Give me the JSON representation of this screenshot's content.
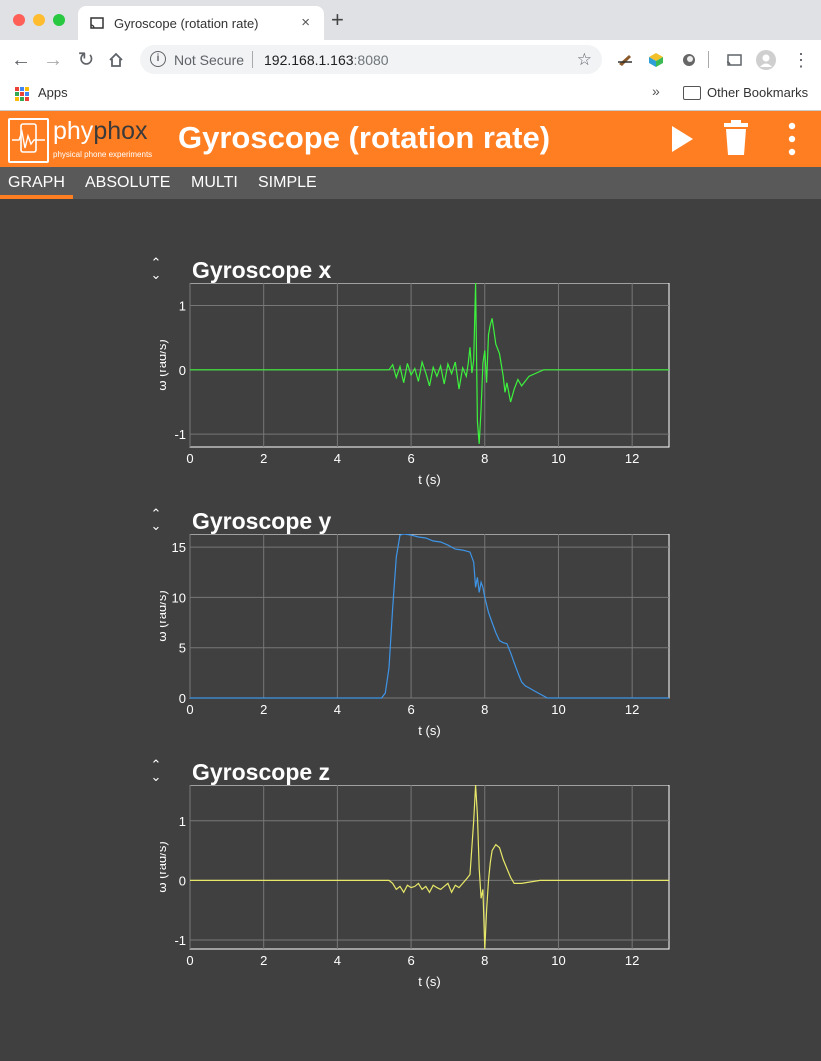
{
  "browser": {
    "tab_title": "Gyroscope (rotation rate)",
    "tab_close": "×",
    "new_tab": "+",
    "security": "Not Secure",
    "url_host": "192.168.1.163",
    "url_port": ":8080",
    "apps_label": "Apps",
    "bookmarks_chevron": "»",
    "other_bookmarks": "Other Bookmarks"
  },
  "app": {
    "brand": "#ff7e22",
    "logo_phy": "phy",
    "logo_phox": "phox",
    "logo_subtitle": "physical phone experiments",
    "title": "Gyroscope (rotation rate)",
    "icons": [
      "play-icon",
      "trash-icon",
      "more-vert-icon"
    ]
  },
  "views": [
    {
      "label": "GRAPH",
      "active": true
    },
    {
      "label": "ABSOLUTE",
      "active": false
    },
    {
      "label": "MULTI",
      "active": false
    },
    {
      "label": "SIMPLE",
      "active": false
    }
  ],
  "graphs": [
    {
      "title": "Gyroscope x",
      "ylabel": "ω (rad/s)",
      "xlabel": "t (s)",
      "color": "#3cf23c"
    },
    {
      "title": "Gyroscope y",
      "ylabel": "ω (rad/s)",
      "xlabel": "t (s)",
      "color": "#3e95e8"
    },
    {
      "title": "Gyroscope z",
      "ylabel": "ω (rad/s)",
      "xlabel": "t (s)",
      "color": "#e8e868"
    }
  ],
  "chart_data": [
    {
      "type": "line",
      "title": "Gyroscope x",
      "xlabel": "t (s)",
      "ylabel": "ω (rad/s)",
      "xlim": [
        0,
        13
      ],
      "ylim": [
        -1.2,
        1.35
      ],
      "xticks": [
        0,
        2,
        4,
        6,
        8,
        10,
        12
      ],
      "yticks": [
        -1,
        0,
        1
      ],
      "grid": true,
      "series": [
        {
          "color": "#3cf23c",
          "x": [
            0,
            5.4,
            5.5,
            5.6,
            5.7,
            5.8,
            5.9,
            6.0,
            6.1,
            6.2,
            6.3,
            6.4,
            6.5,
            6.6,
            6.7,
            6.8,
            6.9,
            7.0,
            7.1,
            7.2,
            7.3,
            7.4,
            7.5,
            7.55,
            7.6,
            7.65,
            7.7,
            7.75,
            7.8,
            7.85,
            7.9,
            7.95,
            8.0,
            8.05,
            8.1,
            8.15,
            8.2,
            8.25,
            8.3,
            8.4,
            8.5,
            8.55,
            8.6,
            8.7,
            8.8,
            8.9,
            9.0,
            9.2,
            9.4,
            9.6,
            10,
            13
          ],
          "y": [
            0,
            0,
            0.08,
            -0.12,
            0.05,
            -0.2,
            0.1,
            -0.08,
            0.02,
            -0.18,
            0.12,
            -0.05,
            -0.25,
            0.04,
            -0.1,
            0.06,
            -0.22,
            0.09,
            -0.06,
            0.12,
            -0.3,
            0.03,
            -0.1,
            0.1,
            0.35,
            -0.05,
            0.15,
            1.35,
            -0.8,
            -1.15,
            -0.6,
            0.1,
            0.3,
            -0.2,
            0.55,
            0.7,
            0.8,
            0.6,
            0.4,
            0.25,
            -0.1,
            -0.35,
            -0.2,
            -0.5,
            -0.3,
            -0.15,
            -0.25,
            -0.1,
            -0.05,
            0,
            0,
            0
          ]
        }
      ]
    },
    {
      "type": "line",
      "title": "Gyroscope y",
      "xlabel": "t (s)",
      "ylabel": "ω (rad/s)",
      "xlim": [
        0,
        13
      ],
      "ylim": [
        0,
        16.3
      ],
      "xticks": [
        0,
        2,
        4,
        6,
        8,
        10,
        12
      ],
      "yticks": [
        0,
        5,
        10,
        15
      ],
      "grid": true,
      "series": [
        {
          "color": "#3e95e8",
          "x": [
            0,
            5.2,
            5.3,
            5.4,
            5.5,
            5.6,
            5.7,
            5.8,
            6.0,
            6.2,
            6.4,
            6.6,
            6.8,
            7.0,
            7.2,
            7.4,
            7.6,
            7.7,
            7.75,
            7.8,
            7.85,
            7.9,
            7.95,
            8.0,
            8.1,
            8.2,
            8.3,
            8.4,
            8.5,
            8.6,
            8.7,
            8.8,
            8.9,
            9.0,
            9.1,
            9.2,
            9.3,
            9.5,
            9.7,
            13
          ],
          "y": [
            0,
            0,
            0.5,
            3,
            9,
            14,
            16.2,
            16.3,
            16.2,
            16,
            15.9,
            15.6,
            15.5,
            15.2,
            14.8,
            14.7,
            14.5,
            13.5,
            11,
            12,
            10.5,
            11.5,
            11,
            10,
            8.5,
            7.5,
            6.5,
            5.7,
            5.5,
            5.4,
            4.5,
            3.5,
            2.5,
            1.6,
            1.2,
            1.0,
            0.8,
            0.4,
            0,
            0
          ]
        }
      ]
    },
    {
      "type": "line",
      "title": "Gyroscope z",
      "xlabel": "t (s)",
      "ylabel": "ω (rad/s)",
      "xlim": [
        0,
        13
      ],
      "ylim": [
        -1.15,
        1.6
      ],
      "xticks": [
        0,
        2,
        4,
        6,
        8,
        10,
        12
      ],
      "yticks": [
        -1,
        0,
        1
      ],
      "grid": true,
      "series": [
        {
          "color": "#e8e868",
          "x": [
            0,
            5.4,
            5.5,
            5.6,
            5.7,
            5.8,
            5.9,
            6.0,
            6.1,
            6.2,
            6.3,
            6.4,
            6.5,
            6.6,
            6.7,
            6.8,
            6.9,
            7.0,
            7.1,
            7.2,
            7.3,
            7.4,
            7.5,
            7.6,
            7.7,
            7.75,
            7.8,
            7.85,
            7.9,
            7.95,
            8.0,
            8.05,
            8.1,
            8.15,
            8.2,
            8.3,
            8.4,
            8.5,
            8.6,
            8.7,
            8.8,
            9.0,
            9.5,
            10,
            13
          ],
          "y": [
            0,
            0,
            -0.05,
            -0.15,
            -0.1,
            -0.2,
            -0.08,
            -0.12,
            -0.1,
            -0.05,
            -0.15,
            -0.1,
            -0.2,
            -0.08,
            -0.12,
            -0.15,
            -0.1,
            -0.05,
            -0.2,
            -0.08,
            -0.12,
            -0.05,
            0.02,
            0.1,
            1.0,
            1.6,
            1.1,
            0.2,
            -0.3,
            -0.15,
            -1.15,
            -0.5,
            0.0,
            0.3,
            0.5,
            0.6,
            0.55,
            0.35,
            0.2,
            0.05,
            -0.05,
            -0.05,
            0,
            0,
            0
          ]
        }
      ]
    }
  ]
}
